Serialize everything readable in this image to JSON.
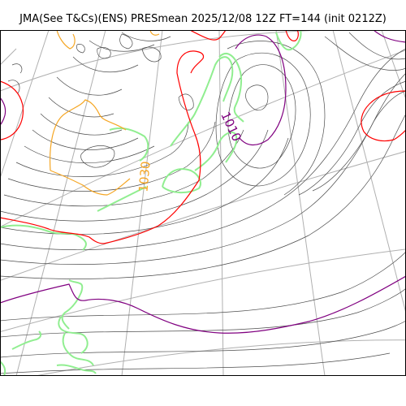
{
  "header": {
    "title": "JMA(See T&Cs)(ENS) PRESmean 2025/12/08 12Z FT=144 (init 0212Z)"
  },
  "map": {
    "contour_labels": [
      {
        "text": "1030",
        "color": "#f5a623"
      },
      {
        "text": "1010",
        "color": "#800080"
      }
    ],
    "colors": {
      "isobar": "#4d4d4d",
      "graticule": "#b0b0b0",
      "coastline": "#90ee90",
      "contour_1030": "#f5a623",
      "contour_1020": "#ff0000",
      "contour_1010": "#800080"
    }
  }
}
